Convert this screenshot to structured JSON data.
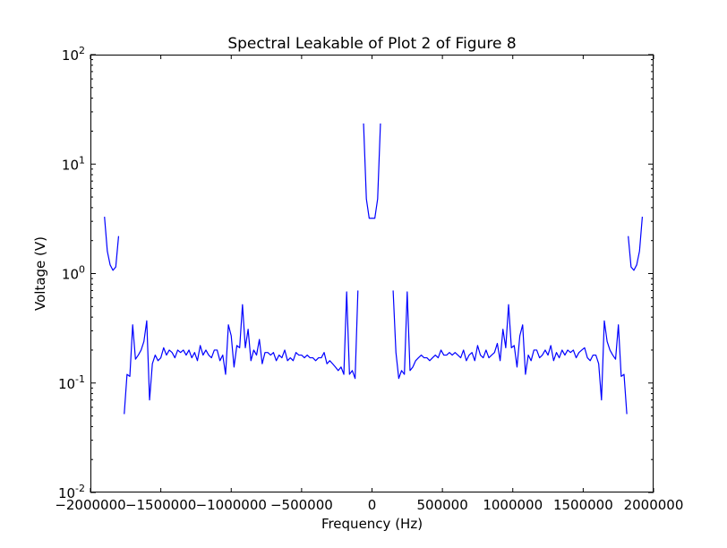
{
  "chart_data": {
    "type": "line",
    "title": "Spectral Leakable of Plot 2 of Figure 8",
    "xlabel": "Frequency (Hz)",
    "ylabel": "Voltage (V)",
    "xlim": [
      -2000000,
      2000000
    ],
    "ylim": [
      0.01,
      100
    ],
    "yscale": "log",
    "grid": false,
    "legend": "none",
    "line_color": "#0000ff",
    "x_ticks": [
      -2000000,
      -1500000,
      -1000000,
      -500000,
      0,
      500000,
      1000000,
      1500000,
      2000000
    ],
    "x_tick_labels": [
      "−2000000",
      "−1500000",
      "−1000000",
      "−500000",
      "0",
      "500000",
      "1000000",
      "1500000",
      "2000000"
    ],
    "y_ticks": [
      0.01,
      0.1,
      1,
      10,
      100
    ],
    "y_tick_labels": [
      {
        "base": "10",
        "exp": "-2"
      },
      {
        "base": "10",
        "exp": "-1"
      },
      {
        "base": "10",
        "exp": "0"
      },
      {
        "base": "10",
        "exp": "1"
      },
      {
        "base": "10",
        "exp": "2"
      }
    ],
    "series": [
      {
        "segments": [
          [
            [
              -1900000,
              3.3
            ],
            [
              -1880000,
              1.6
            ],
            [
              -1860000,
              1.2
            ],
            [
              -1840000,
              1.07
            ],
            [
              -1820000,
              1.15
            ],
            [
              -1800000,
              2.2
            ]
          ],
          [
            [
              -1760000,
              0.052
            ],
            [
              -1740000,
              0.12
            ],
            [
              -1720000,
              0.115
            ],
            [
              -1700000,
              0.34
            ],
            [
              -1680000,
              0.165
            ],
            [
              -1660000,
              0.18
            ],
            [
              -1640000,
              0.2
            ],
            [
              -1620000,
              0.24
            ],
            [
              -1600000,
              0.37
            ],
            [
              -1580000,
              0.07
            ],
            [
              -1560000,
              0.15
            ],
            [
              -1540000,
              0.18
            ],
            [
              -1520000,
              0.16
            ],
            [
              -1500000,
              0.17
            ],
            [
              -1480000,
              0.21
            ],
            [
              -1460000,
              0.18
            ],
            [
              -1440000,
              0.2
            ],
            [
              -1420000,
              0.19
            ],
            [
              -1400000,
              0.17
            ],
            [
              -1380000,
              0.2
            ],
            [
              -1360000,
              0.19
            ],
            [
              -1340000,
              0.2
            ],
            [
              -1320000,
              0.18
            ],
            [
              -1300000,
              0.2
            ],
            [
              -1280000,
              0.17
            ],
            [
              -1260000,
              0.19
            ],
            [
              -1240000,
              0.16
            ],
            [
              -1220000,
              0.22
            ],
            [
              -1200000,
              0.18
            ],
            [
              -1180000,
              0.2
            ],
            [
              -1160000,
              0.18
            ],
            [
              -1140000,
              0.17
            ],
            [
              -1120000,
              0.2
            ],
            [
              -1100000,
              0.2
            ],
            [
              -1080000,
              0.16
            ],
            [
              -1060000,
              0.18
            ],
            [
              -1040000,
              0.12
            ],
            [
              -1020000,
              0.34
            ],
            [
              -1000000,
              0.27
            ],
            [
              -980000,
              0.14
            ],
            [
              -960000,
              0.22
            ],
            [
              -940000,
              0.21
            ],
            [
              -920000,
              0.52
            ],
            [
              -900000,
              0.21
            ],
            [
              -880000,
              0.31
            ],
            [
              -860000,
              0.16
            ],
            [
              -840000,
              0.2
            ],
            [
              -820000,
              0.18
            ],
            [
              -800000,
              0.25
            ],
            [
              -780000,
              0.15
            ],
            [
              -760000,
              0.19
            ],
            [
              -740000,
              0.19
            ],
            [
              -720000,
              0.18
            ],
            [
              -700000,
              0.19
            ],
            [
              -680000,
              0.16
            ],
            [
              -660000,
              0.18
            ],
            [
              -640000,
              0.17
            ],
            [
              -620000,
              0.2
            ],
            [
              -600000,
              0.16
            ],
            [
              -580000,
              0.17
            ],
            [
              -560000,
              0.16
            ],
            [
              -540000,
              0.19
            ],
            [
              -520000,
              0.18
            ],
            [
              -500000,
              0.18
            ],
            [
              -480000,
              0.17
            ],
            [
              -460000,
              0.18
            ],
            [
              -440000,
              0.17
            ],
            [
              -420000,
              0.17
            ],
            [
              -400000,
              0.16
            ],
            [
              -380000,
              0.17
            ],
            [
              -360000,
              0.17
            ],
            [
              -340000,
              0.19
            ],
            [
              -320000,
              0.15
            ],
            [
              -300000,
              0.16
            ],
            [
              -280000,
              0.15
            ],
            [
              -260000,
              0.14
            ],
            [
              -240000,
              0.13
            ],
            [
              -220000,
              0.14
            ],
            [
              -200000,
              0.12
            ],
            [
              -180000,
              0.68
            ],
            [
              -160000,
              0.12
            ],
            [
              -140000,
              0.13
            ],
            [
              -120000,
              0.11
            ],
            [
              -100000,
              0.7
            ]
          ],
          [
            [
              -60000,
              23.5
            ],
            [
              -40000,
              4.8
            ],
            [
              -20000,
              3.2
            ],
            [
              0,
              3.2
            ],
            [
              20000,
              3.2
            ],
            [
              40000,
              4.8
            ],
            [
              60000,
              23.5
            ]
          ],
          [
            [
              150000,
              0.7
            ],
            [
              170000,
              0.19
            ],
            [
              190000,
              0.11
            ],
            [
              210000,
              0.13
            ],
            [
              230000,
              0.12
            ],
            [
              250000,
              0.68
            ],
            [
              270000,
              0.13
            ],
            [
              290000,
              0.14
            ],
            [
              310000,
              0.16
            ],
            [
              330000,
              0.17
            ],
            [
              350000,
              0.18
            ],
            [
              370000,
              0.17
            ],
            [
              390000,
              0.17
            ],
            [
              410000,
              0.16
            ],
            [
              430000,
              0.17
            ],
            [
              450000,
              0.18
            ],
            [
              470000,
              0.17
            ],
            [
              490000,
              0.2
            ],
            [
              510000,
              0.18
            ],
            [
              530000,
              0.18
            ],
            [
              550000,
              0.19
            ],
            [
              570000,
              0.18
            ],
            [
              590000,
              0.19
            ],
            [
              610000,
              0.18
            ],
            [
              630000,
              0.17
            ],
            [
              650000,
              0.2
            ],
            [
              670000,
              0.16
            ],
            [
              690000,
              0.18
            ],
            [
              710000,
              0.19
            ],
            [
              730000,
              0.16
            ],
            [
              750000,
              0.22
            ],
            [
              770000,
              0.18
            ],
            [
              790000,
              0.17
            ],
            [
              810000,
              0.2
            ],
            [
              830000,
              0.17
            ],
            [
              850000,
              0.18
            ],
            [
              870000,
              0.19
            ],
            [
              890000,
              0.23
            ],
            [
              910000,
              0.16
            ],
            [
              930000,
              0.31
            ],
            [
              950000,
              0.21
            ],
            [
              970000,
              0.52
            ],
            [
              990000,
              0.21
            ],
            [
              1010000,
              0.22
            ],
            [
              1030000,
              0.14
            ],
            [
              1050000,
              0.27
            ],
            [
              1070000,
              0.34
            ],
            [
              1090000,
              0.12
            ],
            [
              1110000,
              0.18
            ],
            [
              1130000,
              0.16
            ],
            [
              1150000,
              0.2
            ],
            [
              1170000,
              0.2
            ],
            [
              1190000,
              0.17
            ],
            [
              1210000,
              0.18
            ],
            [
              1230000,
              0.2
            ],
            [
              1250000,
              0.18
            ],
            [
              1270000,
              0.22
            ],
            [
              1290000,
              0.16
            ],
            [
              1310000,
              0.19
            ],
            [
              1330000,
              0.17
            ],
            [
              1350000,
              0.2
            ],
            [
              1370000,
              0.18
            ],
            [
              1390000,
              0.2
            ],
            [
              1410000,
              0.19
            ],
            [
              1430000,
              0.2
            ],
            [
              1450000,
              0.17
            ],
            [
              1470000,
              0.19
            ],
            [
              1490000,
              0.2
            ],
            [
              1510000,
              0.21
            ],
            [
              1530000,
              0.17
            ],
            [
              1550000,
              0.16
            ],
            [
              1570000,
              0.18
            ],
            [
              1590000,
              0.18
            ],
            [
              1610000,
              0.15
            ],
            [
              1630000,
              0.07
            ],
            [
              1650000,
              0.37
            ],
            [
              1670000,
              0.24
            ],
            [
              1690000,
              0.2
            ],
            [
              1710000,
              0.18
            ],
            [
              1730000,
              0.165
            ],
            [
              1750000,
              0.34
            ],
            [
              1770000,
              0.115
            ],
            [
              1790000,
              0.12
            ],
            [
              1810000,
              0.052
            ]
          ],
          [
            [
              1820000,
              2.2
            ],
            [
              1840000,
              1.15
            ],
            [
              1860000,
              1.07
            ],
            [
              1880000,
              1.2
            ],
            [
              1900000,
              1.6
            ],
            [
              1920000,
              3.3
            ]
          ]
        ]
      }
    ]
  }
}
